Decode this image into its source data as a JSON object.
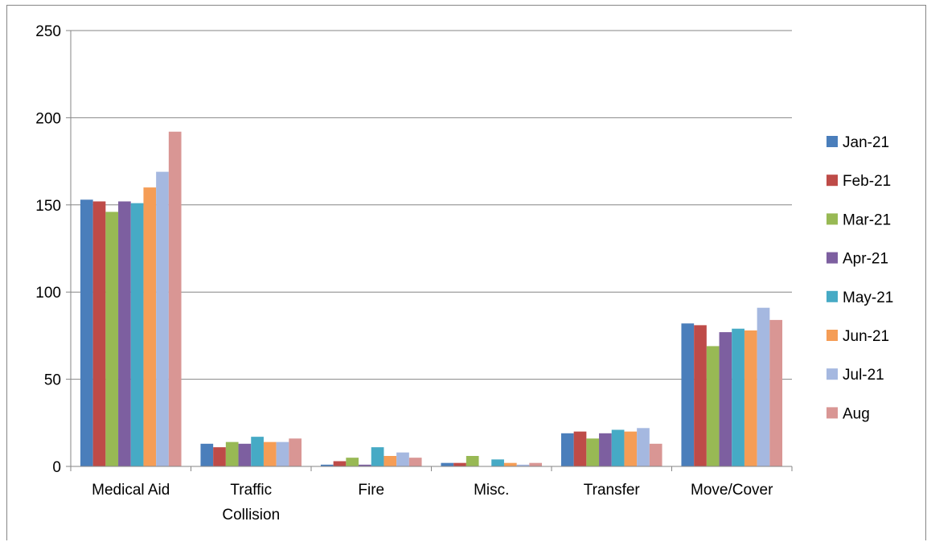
{
  "chart_data": {
    "type": "bar",
    "title": "",
    "xlabel": "",
    "ylabel": "",
    "ylim": [
      0,
      250
    ],
    "yticks": [
      0,
      50,
      100,
      150,
      200,
      250
    ],
    "grid": true,
    "legend_position": "right",
    "categories": [
      "Medical Aid",
      "Traffic Collision",
      "Fire",
      "Misc.",
      "Transfer",
      "Move/Cover"
    ],
    "category_label_lines": [
      [
        "Medical Aid"
      ],
      [
        "Traffic",
        "Collision"
      ],
      [
        "Fire"
      ],
      [
        "Misc."
      ],
      [
        "Transfer"
      ],
      [
        "Move/Cover"
      ]
    ],
    "series": [
      {
        "name": "Jan-21",
        "color": "#4a7ebb",
        "values": [
          153,
          13,
          1,
          2,
          19,
          82
        ]
      },
      {
        "name": "Feb-21",
        "color": "#be4b48",
        "values": [
          152,
          11,
          3,
          2,
          20,
          81
        ]
      },
      {
        "name": "Mar-21",
        "color": "#98b954",
        "values": [
          146,
          14,
          5,
          6,
          16,
          69
        ]
      },
      {
        "name": "Apr-21",
        "color": "#7d5fa0",
        "values": [
          152,
          13,
          1,
          0,
          19,
          77
        ]
      },
      {
        "name": "May-21",
        "color": "#46aac5",
        "values": [
          151,
          17,
          11,
          4,
          21,
          79
        ]
      },
      {
        "name": "Jun-21",
        "color": "#f59d56",
        "values": [
          160,
          14,
          6,
          2,
          20,
          78
        ]
      },
      {
        "name": "Jul-21",
        "color": "#a5b8e0",
        "values": [
          169,
          14,
          8,
          1,
          22,
          91
        ]
      },
      {
        "name": "Aug",
        "color": "#d99694",
        "values": [
          192,
          16,
          5,
          2,
          13,
          84
        ]
      }
    ]
  }
}
